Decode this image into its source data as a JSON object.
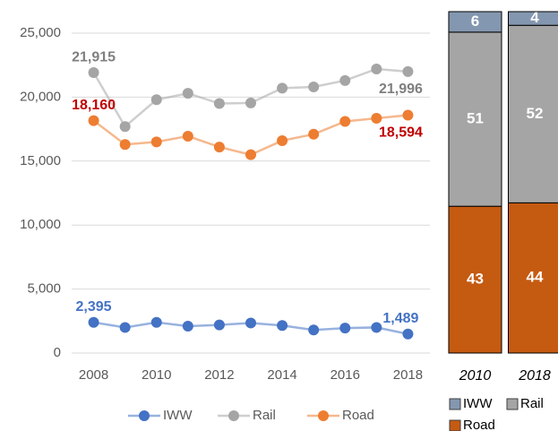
{
  "chart_data": [
    {
      "type": "line",
      "x": [
        2008,
        2009,
        2010,
        2011,
        2012,
        2013,
        2014,
        2015,
        2016,
        2017,
        2018
      ],
      "xlim": [
        2007.3,
        2018.7
      ],
      "xticks": [
        2008,
        2010,
        2012,
        2014,
        2016,
        2018
      ],
      "ylim": [
        0,
        25000
      ],
      "yticks": [
        0,
        {
          "value": 5000,
          "label": "5,000"
        },
        {
          "value": 10000,
          "label": "10,000"
        },
        {
          "value": 15000,
          "label": "15,000"
        },
        {
          "value": 20000,
          "label": "20,000"
        },
        {
          "value": 25000,
          "label": "25,000"
        }
      ],
      "grid": true,
      "legend": "bottom",
      "series": [
        {
          "name": "IWW",
          "color": "#4472c4",
          "label_color": "#4472c4",
          "values": [
            2395,
            2000,
            2400,
            2100,
            2200,
            2350,
            2150,
            1800,
            1950,
            2000,
            1489
          ],
          "value_labels": [
            "2,395",
            null,
            null,
            null,
            null,
            null,
            null,
            null,
            null,
            null,
            "1,489"
          ]
        },
        {
          "name": "Rail",
          "color": "#a5a5a5",
          "label_color": "#7f7f7f",
          "values": [
            21915,
            17700,
            19800,
            20300,
            19500,
            19550,
            20700,
            20800,
            21300,
            22200,
            21996
          ],
          "value_labels": [
            "21,915",
            null,
            null,
            null,
            null,
            null,
            null,
            null,
            null,
            null,
            "21,996"
          ]
        },
        {
          "name": "Road",
          "color": "#ed7d31",
          "label_color": "#c00000",
          "values": [
            18160,
            16300,
            16500,
            16950,
            16100,
            15500,
            16600,
            17100,
            18100,
            18350,
            18594
          ],
          "value_labels": [
            "18,160",
            null,
            null,
            null,
            null,
            null,
            null,
            null,
            null,
            null,
            "18,594"
          ]
        }
      ]
    },
    {
      "type": "stacked_bar",
      "categories": [
        "2010",
        "2018"
      ],
      "ylim": [
        0,
        100
      ],
      "series": [
        {
          "name": "Road",
          "color": "#c55a11",
          "values": [
            43,
            44
          ]
        },
        {
          "name": "Rail",
          "color": "#a5a5a5",
          "values": [
            51,
            52
          ]
        },
        {
          "name": "IWW",
          "color": "#8497b0",
          "values": [
            6,
            4
          ]
        }
      ]
    }
  ]
}
